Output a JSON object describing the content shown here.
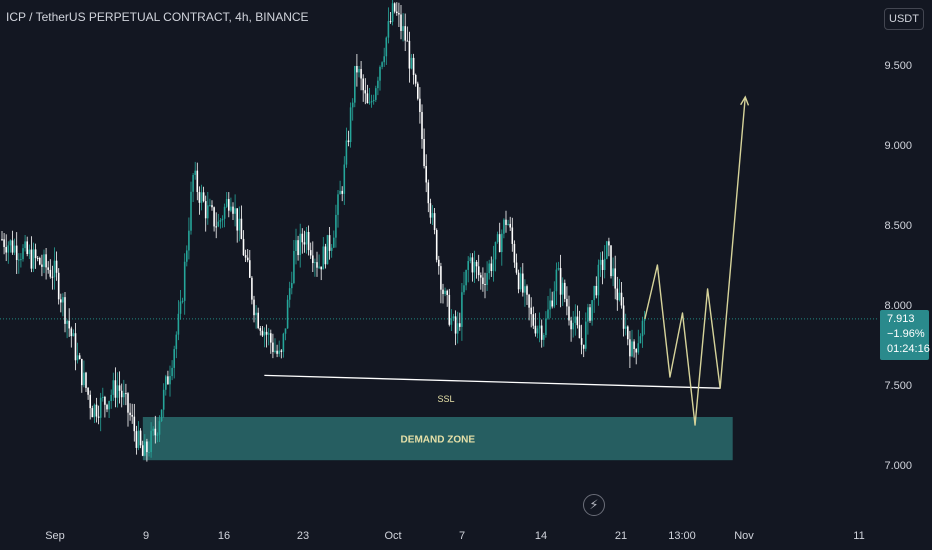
{
  "title": "ICP / TetherUS PERPETUAL CONTRACT, 4h, BINANCE",
  "currency_button": "USDT",
  "last_price": {
    "price": "7.913",
    "change": "−1.96%",
    "countdown": "01:24:16"
  },
  "colors": {
    "background": "#131722",
    "candle_up": "#26a69a",
    "candle_down": "#ffffff",
    "demand_zone": "#2a6b6c",
    "projection": "#d6d39a",
    "ssl_line": "#ffffff",
    "price_line": "#26a69a"
  },
  "flash_icon": "lightning-icon",
  "chart_data": {
    "type": "candlestick",
    "timeframe": "4h",
    "x_ticks": [
      "Sep",
      "9",
      "16",
      "23",
      "Oct",
      "7",
      "14",
      "21",
      "13:00",
      "Nov",
      "11"
    ],
    "y_ticks": [
      "7.000",
      "7.500",
      "8.000",
      "8.500",
      "9.000",
      "9.500"
    ],
    "ylim": [
      6.8,
      9.9
    ],
    "grid": false,
    "last_price": 7.913,
    "price_path": [
      {
        "date": "Sep 1",
        "price": 8.2
      },
      {
        "date": "Sep 2",
        "price": 7.9
      },
      {
        "date": "Sep 3",
        "price": 7.6
      },
      {
        "date": "Sep 4",
        "price": 7.35
      },
      {
        "date": "Sep 5",
        "price": 7.4
      },
      {
        "date": "Sep 6",
        "price": 7.5
      },
      {
        "date": "Sep 7",
        "price": 7.3
      },
      {
        "date": "Sep 8",
        "price": 7.05
      },
      {
        "date": "Sep 9",
        "price": 7.2
      },
      {
        "date": "Sep 10",
        "price": 7.55
      },
      {
        "date": "Sep 11",
        "price": 7.95
      },
      {
        "date": "Sep 12",
        "price": 8.8
      },
      {
        "date": "Sep 13",
        "price": 8.6
      },
      {
        "date": "Sep 14",
        "price": 8.5
      },
      {
        "date": "Sep 15",
        "price": 8.7
      },
      {
        "date": "Sep 16",
        "price": 8.35
      },
      {
        "date": "Sep 17",
        "price": 7.95
      },
      {
        "date": "Sep 18",
        "price": 7.8
      },
      {
        "date": "Sep 19",
        "price": 7.65
      },
      {
        "date": "Sep 20",
        "price": 8.3
      },
      {
        "date": "Sep 21",
        "price": 8.45
      },
      {
        "date": "Sep 22",
        "price": 8.25
      },
      {
        "date": "Sep 23",
        "price": 8.4
      },
      {
        "date": "Sep 24",
        "price": 8.8
      },
      {
        "date": "Sep 25",
        "price": 9.5
      },
      {
        "date": "Sep 26",
        "price": 9.2
      },
      {
        "date": "Sep 27",
        "price": 9.55
      },
      {
        "date": "Sep 28",
        "price": 9.85
      },
      {
        "date": "Sep 29",
        "price": 9.65
      },
      {
        "date": "Sep 30",
        "price": 9.2
      },
      {
        "date": "Oct 1",
        "price": 8.55
      },
      {
        "date": "Oct 2",
        "price": 8.05
      },
      {
        "date": "Oct 3",
        "price": 7.8
      },
      {
        "date": "Oct 4",
        "price": 8.3
      },
      {
        "date": "Oct 5",
        "price": 8.15
      },
      {
        "date": "Oct 6",
        "price": 8.3
      },
      {
        "date": "Oct 7",
        "price": 8.55
      },
      {
        "date": "Oct 8",
        "price": 8.15
      },
      {
        "date": "Oct 9",
        "price": 7.9
      },
      {
        "date": "Oct 10",
        "price": 7.85
      },
      {
        "date": "Oct 11",
        "price": 8.2
      },
      {
        "date": "Oct 12",
        "price": 7.95
      },
      {
        "date": "Oct 13",
        "price": 7.75
      },
      {
        "date": "Oct 14",
        "price": 8.1
      },
      {
        "date": "Oct 15",
        "price": 8.35
      },
      {
        "date": "Oct 16",
        "price": 8.0
      },
      {
        "date": "Oct 17",
        "price": 7.7
      },
      {
        "date": "Oct 18",
        "price": 7.913
      }
    ],
    "annotations": [
      {
        "type": "zone",
        "label": "DEMAND ZONE",
        "from_date": "Sep 8",
        "to_date": "Oct 25",
        "top": 7.3,
        "bottom": 7.03
      },
      {
        "type": "trendline",
        "label": "SSL",
        "from": {
          "date": "Sep 18",
          "price": 7.56
        },
        "to": {
          "date": "Oct 24",
          "price": 7.48
        }
      },
      {
        "type": "projection_path",
        "points": [
          {
            "date": "Oct 18",
            "price": 7.913
          },
          {
            "date": "Oct 19",
            "price": 8.25
          },
          {
            "date": "Oct 20",
            "price": 7.55
          },
          {
            "date": "Oct 21",
            "price": 7.95
          },
          {
            "date": "Oct 22",
            "price": 7.25
          },
          {
            "date": "Oct 23",
            "price": 8.1
          },
          {
            "date": "Oct 24",
            "price": 7.48
          },
          {
            "date": "Oct 26",
            "price": 9.3
          }
        ]
      }
    ]
  }
}
